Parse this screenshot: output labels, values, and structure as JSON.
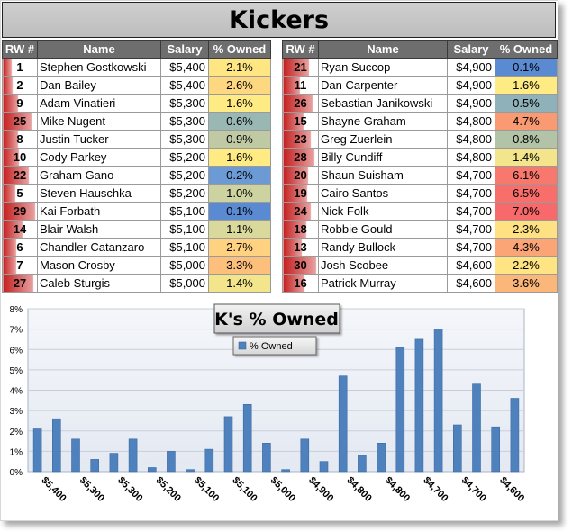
{
  "title": "Kickers",
  "columns": {
    "rank": "RW #",
    "name": "Name",
    "salary": "Salary",
    "owned": "% Owned"
  },
  "tables": [
    {
      "rows": [
        {
          "rank": "1",
          "name": "Stephen Gostkowski",
          "salary": "$5,400",
          "owned": "2.1%",
          "rank_level": 0.03,
          "owned_color": "#fee782"
        },
        {
          "rank": "2",
          "name": "Dan Bailey",
          "salary": "$5,400",
          "owned": "2.6%",
          "rank_level": 0.07,
          "owned_color": "#fed880"
        },
        {
          "rank": "9",
          "name": "Adam Vinatieri",
          "salary": "$5,300",
          "owned": "1.6%",
          "rank_level": 0.3,
          "owned_color": "#ffeb84"
        },
        {
          "rank": "25",
          "name": "Mike Nugent",
          "salary": "$5,300",
          "owned": "0.6%",
          "rank_level": 0.83,
          "owned_color": "#99b8b3"
        },
        {
          "rank": "8",
          "name": "Justin Tucker",
          "salary": "$5,300",
          "owned": "0.9%",
          "rank_level": 0.27,
          "owned_color": "#bfc9a4"
        },
        {
          "rank": "10",
          "name": "Cody Parkey",
          "salary": "$5,200",
          "owned": "1.6%",
          "rank_level": 0.33,
          "owned_color": "#ffeb84"
        },
        {
          "rank": "22",
          "name": "Graham Gano",
          "salary": "$5,200",
          "owned": "0.2%",
          "rank_level": 0.73,
          "owned_color": "#6c9ad4"
        },
        {
          "rank": "5",
          "name": "Steven Hauschka",
          "salary": "$5,200",
          "owned": "1.0%",
          "rank_level": 0.17,
          "owned_color": "#cdd3a0"
        },
        {
          "rank": "29",
          "name": "Kai Forbath",
          "salary": "$5,100",
          "owned": "0.1%",
          "rank_level": 0.97,
          "owned_color": "#5a8ad2"
        },
        {
          "rank": "14",
          "name": "Blair Walsh",
          "salary": "$5,100",
          "owned": "1.1%",
          "rank_level": 0.47,
          "owned_color": "#d8d99a"
        },
        {
          "rank": "6",
          "name": "Chandler Catanzaro",
          "salary": "$5,100",
          "owned": "2.7%",
          "rank_level": 0.2,
          "owned_color": "#fed280"
        },
        {
          "rank": "7",
          "name": "Mason Crosby",
          "salary": "$5,000",
          "owned": "3.3%",
          "rank_level": 0.23,
          "owned_color": "#fcc07c"
        },
        {
          "rank": "27",
          "name": "Caleb Sturgis",
          "salary": "$5,000",
          "owned": "1.4%",
          "rank_level": 0.9,
          "owned_color": "#f2e58c"
        }
      ]
    },
    {
      "rows": [
        {
          "rank": "21",
          "name": "Ryan Succop",
          "salary": "$4,900",
          "owned": "0.1%",
          "rank_level": 0.7,
          "owned_color": "#5a8ad2"
        },
        {
          "rank": "11",
          "name": "Dan Carpenter",
          "salary": "$4,900",
          "owned": "1.6%",
          "rank_level": 0.37,
          "owned_color": "#ffeb84"
        },
        {
          "rank": "26",
          "name": "Sebastian Janikowski",
          "salary": "$4,900",
          "owned": "0.5%",
          "rank_level": 0.87,
          "owned_color": "#8fb1b9"
        },
        {
          "rank": "15",
          "name": "Shayne Graham",
          "salary": "$4,800",
          "owned": "4.7%",
          "rank_level": 0.5,
          "owned_color": "#f99a72"
        },
        {
          "rank": "23",
          "name": "Greg Zuerlein",
          "salary": "$4,800",
          "owned": "0.8%",
          "rank_level": 0.77,
          "owned_color": "#b2c3a8"
        },
        {
          "rank": "28",
          "name": "Billy Cundiff",
          "salary": "$4,800",
          "owned": "1.4%",
          "rank_level": 0.93,
          "owned_color": "#f2e58c"
        },
        {
          "rank": "20",
          "name": "Shaun Suisham",
          "salary": "$4,700",
          "owned": "6.1%",
          "rank_level": 0.67,
          "owned_color": "#f8786d"
        },
        {
          "rank": "19",
          "name": "Cairo Santos",
          "salary": "$4,700",
          "owned": "6.5%",
          "rank_level": 0.63,
          "owned_color": "#f86e6b"
        },
        {
          "rank": "24",
          "name": "Nick Folk",
          "salary": "$4,700",
          "owned": "7.0%",
          "rank_level": 0.8,
          "owned_color": "#f8696b"
        },
        {
          "rank": "18",
          "name": "Robbie Gould",
          "salary": "$4,700",
          "owned": "2.3%",
          "rank_level": 0.6,
          "owned_color": "#fee182"
        },
        {
          "rank": "13",
          "name": "Randy Bullock",
          "salary": "$4,700",
          "owned": "4.3%",
          "rank_level": 0.43,
          "owned_color": "#fba476"
        },
        {
          "rank": "30",
          "name": "Josh Scobee",
          "salary": "$4,600",
          "owned": "2.2%",
          "rank_level": 1.0,
          "owned_color": "#fee482"
        },
        {
          "rank": "16",
          "name": "Patrick Murray",
          "salary": "$4,600",
          "owned": "3.6%",
          "rank_level": 0.53,
          "owned_color": "#fbb77a"
        }
      ]
    }
  ],
  "chart_data": {
    "type": "bar",
    "title": "K's % Owned",
    "legend_position": "top",
    "grid": true,
    "series": [
      {
        "name": "% Owned",
        "color": "#4f81bd",
        "values": [
          2.1,
          2.6,
          1.6,
          0.6,
          0.9,
          1.6,
          0.2,
          1.0,
          0.1,
          1.1,
          2.7,
          3.3,
          1.4,
          0.1,
          1.6,
          0.5,
          4.7,
          0.8,
          1.4,
          6.1,
          6.5,
          7.0,
          2.3,
          4.3,
          2.2,
          3.6
        ]
      }
    ],
    "categories": [
      "$5,400",
      "$5,400",
      "$5,300",
      "$5,300",
      "$5,300",
      "$5,200",
      "$5,200",
      "$5,200",
      "$5,100",
      "$5,100",
      "$5,100",
      "$5,000",
      "$5,000",
      "$4,900",
      "$4,900",
      "$4,900",
      "$4,800",
      "$4,800",
      "$4,800",
      "$4,700",
      "$4,700",
      "$4,700",
      "$4,700",
      "$4,700",
      "$4,600",
      "$4,600"
    ],
    "x_tick_labels": [
      "$5,400",
      "$5,300",
      "$5,300",
      "$5,200",
      "$5,100",
      "$5,100",
      "$5,000",
      "$4,900",
      "$4,800",
      "$4,800",
      "$4,700",
      "$4,700",
      "$4,600"
    ],
    "y_tick_labels": [
      "0%",
      "1%",
      "2%",
      "3%",
      "4%",
      "5%",
      "6%",
      "7%",
      "8%"
    ],
    "ylim": [
      0,
      8
    ]
  }
}
